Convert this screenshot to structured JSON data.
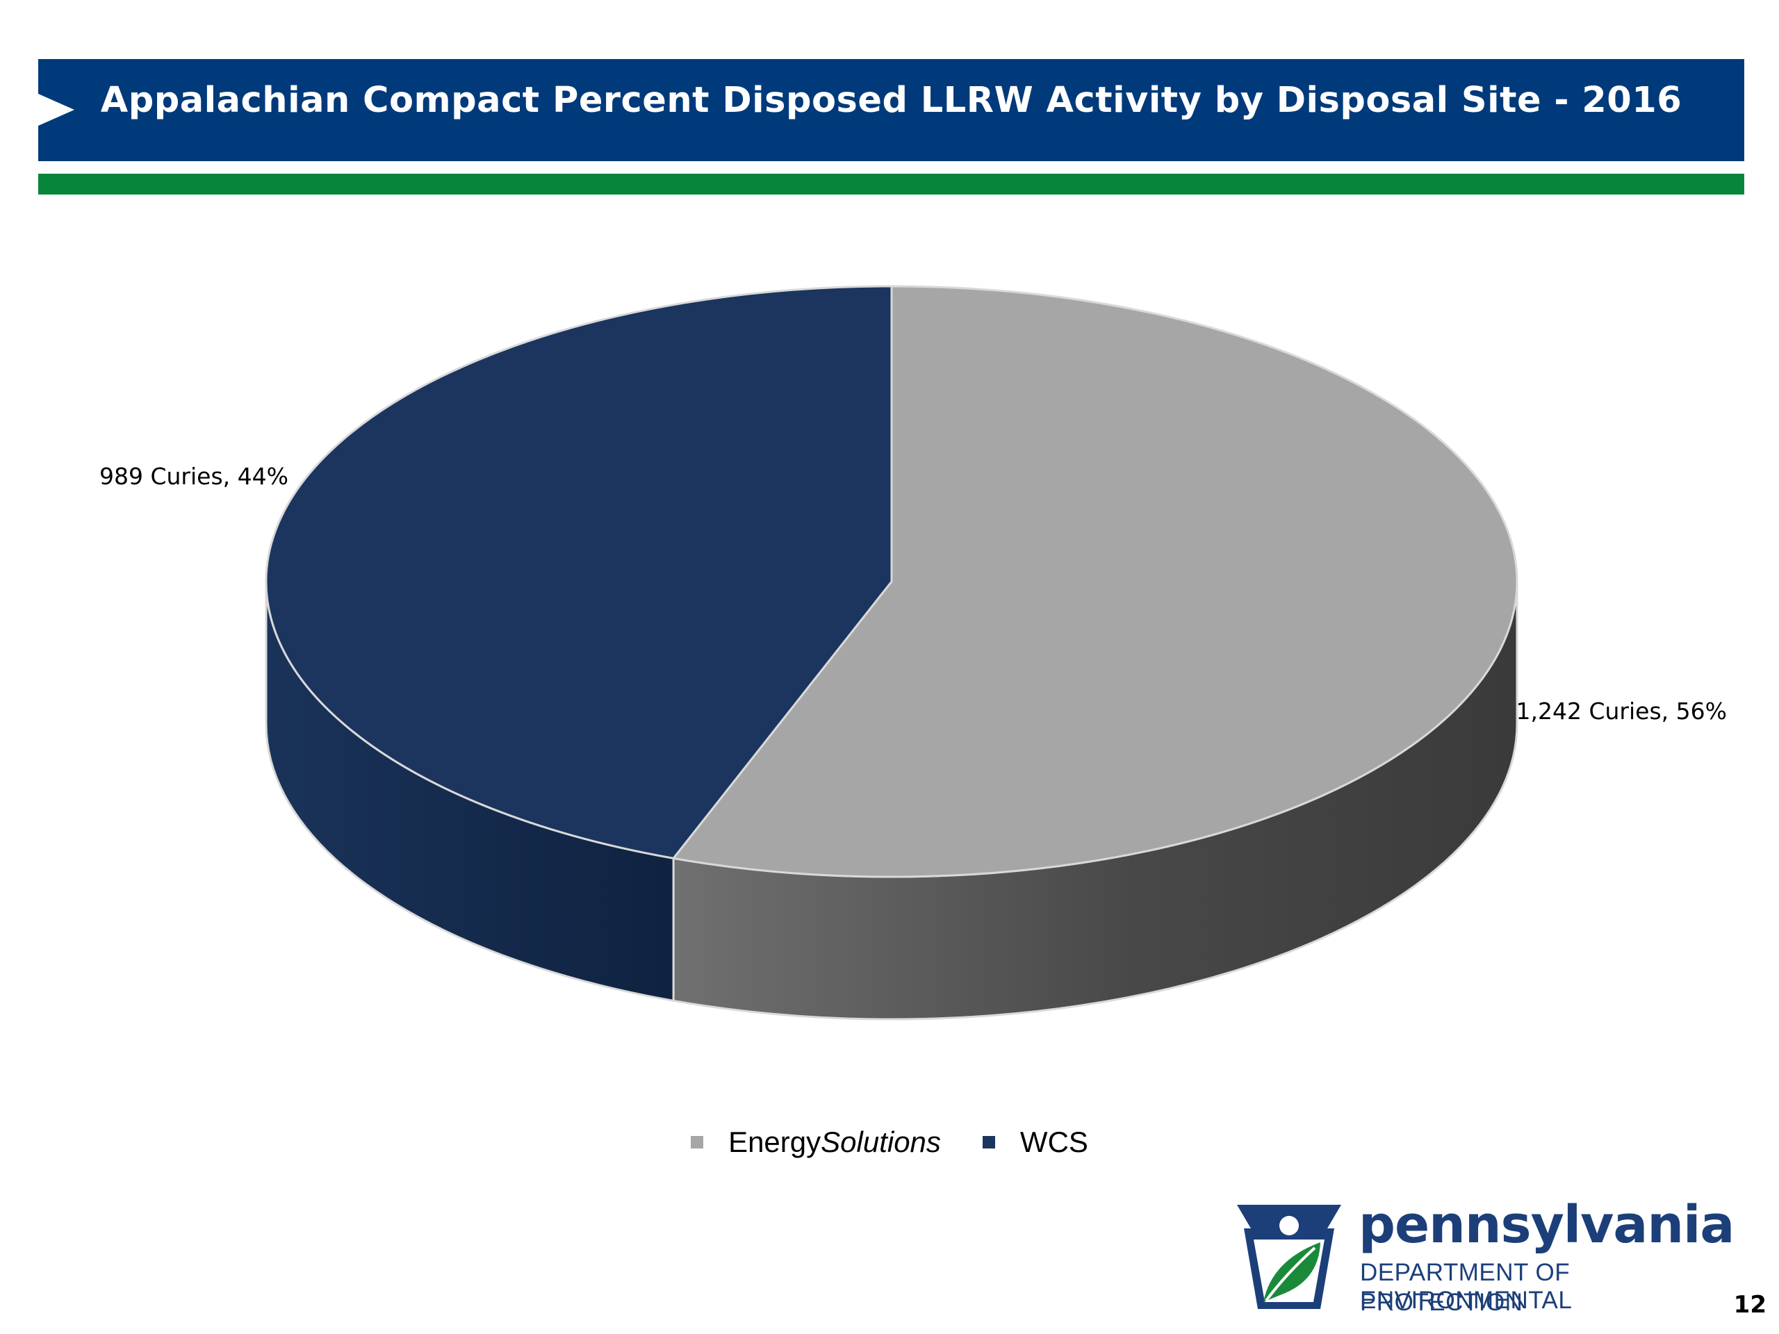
{
  "slide": {
    "title": "Appalachian Compact Percent Disposed LLRW Activity by Disposal Site - 2016",
    "page_number": "12"
  },
  "colors": {
    "title_bar": "#003a7a",
    "green_rule": "#07853b",
    "energysolutions_top": "#a6a6a6",
    "energysolutions_side": "#5a5a5a",
    "wcs_top": "#1b355e",
    "wcs_side": "#142a4b",
    "logo_blue": "#1c3f7a",
    "logo_green": "#1a8a3a"
  },
  "chart_data": {
    "type": "pie",
    "title": "Appalachian Compact Percent Disposed LLRW Activity by Disposal Site - 2016",
    "style": "3d",
    "legend_position": "bottom",
    "slices": [
      {
        "name": "EnergySolutions",
        "value": 1242,
        "unit": "Curies",
        "percent": 56,
        "label": "1,242 Curies, 56%",
        "color": "#a6a6a6"
      },
      {
        "name": "WCS",
        "value": 989,
        "unit": "Curies",
        "percent": 44,
        "label": "989 Curies, 44%",
        "color": "#1b355e"
      }
    ]
  },
  "legend": {
    "items": [
      {
        "prefix": "Energy",
        "suffix": "Solutions",
        "color": "#a6a6a6"
      },
      {
        "prefix": "WCS",
        "suffix": "",
        "color": "#1b355e"
      }
    ]
  },
  "logo": {
    "word": "pennsylvania",
    "line1": "DEPARTMENT OF ENVIRONMENTAL",
    "line2": "PROTECTION"
  }
}
